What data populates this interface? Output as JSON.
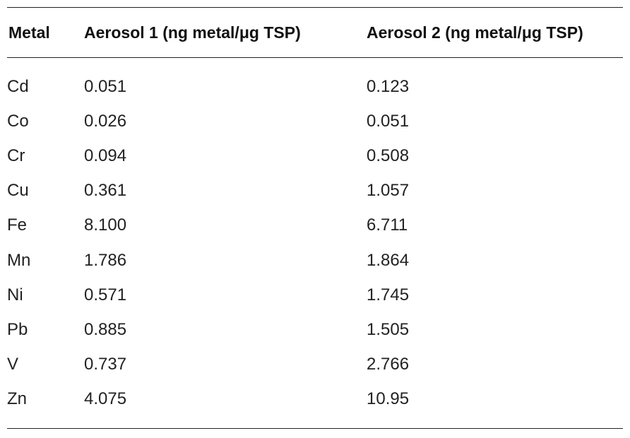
{
  "table": {
    "headers": {
      "metal": "Metal",
      "aerosol1": "Aerosol 1 (ng metal/μg TSP)",
      "aerosol2": "Aerosol 2 (ng metal/μg TSP)"
    },
    "rows": [
      {
        "metal": "Cd",
        "aerosol1": "0.051",
        "aerosol2": "0.123"
      },
      {
        "metal": "Co",
        "aerosol1": "0.026",
        "aerosol2": "0.051"
      },
      {
        "metal": "Cr",
        "aerosol1": "0.094",
        "aerosol2": "0.508"
      },
      {
        "metal": "Cu",
        "aerosol1": "0.361",
        "aerosol2": "1.057"
      },
      {
        "metal": "Fe",
        "aerosol1": "8.100",
        "aerosol2": "6.711"
      },
      {
        "metal": "Mn",
        "aerosol1": "1.786",
        "aerosol2": "1.864"
      },
      {
        "metal": "Ni",
        "aerosol1": "0.571",
        "aerosol2": "1.745"
      },
      {
        "metal": "Pb",
        "aerosol1": "0.885",
        "aerosol2": "1.505"
      },
      {
        "metal": "V",
        "aerosol1": "0.737",
        "aerosol2": "2.766"
      },
      {
        "metal": "Zn",
        "aerosol1": "4.075",
        "aerosol2": "10.95"
      }
    ]
  }
}
